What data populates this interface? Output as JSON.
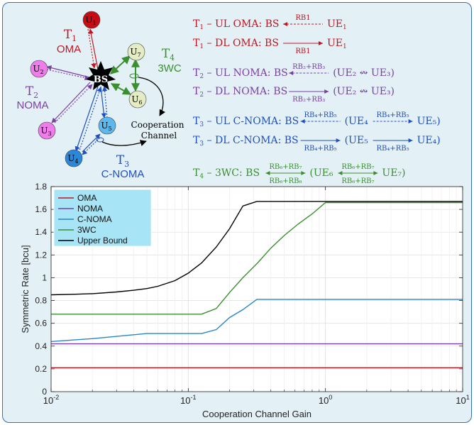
{
  "colors": {
    "oma": "#c0161f",
    "noma": "#7a3fa3",
    "cnoma": "#2377c4",
    "w3c": "#3a8f2e",
    "upper": "#000000",
    "background": "#e3f1f7",
    "border": "#3a6fb0",
    "legend_bg": "#a7e4f5"
  },
  "diagram": {
    "bs_label": "BS",
    "nodes": [
      {
        "id": "U1",
        "letter": "U",
        "sub": "1",
        "color": "#c60c12"
      },
      {
        "id": "U2",
        "letter": "U",
        "sub": "2",
        "color": "#ee7cea"
      },
      {
        "id": "U3",
        "letter": "U",
        "sub": "3",
        "color": "#ee7cea"
      },
      {
        "id": "U4",
        "letter": "U",
        "sub": "4",
        "color": "#2b87d8"
      },
      {
        "id": "U5",
        "letter": "U",
        "sub": "5",
        "color": "#5cb9ef"
      },
      {
        "id": "U6",
        "letter": "U",
        "sub": "6",
        "color": "#e5ecc4"
      },
      {
        "id": "U7",
        "letter": "U",
        "sub": "7",
        "color": "#e5ecc4"
      }
    ],
    "group_labels": [
      {
        "id": "T1",
        "letter": "T",
        "sub": "1",
        "name": "OMA",
        "color": "#c0161f"
      },
      {
        "id": "T2",
        "letter": "T",
        "sub": "2",
        "name": "NOMA",
        "color": "#7a3fa3"
      },
      {
        "id": "T3",
        "letter": "T",
        "sub": "3",
        "name": "C-NOMA",
        "color": "#1f4fc0"
      },
      {
        "id": "T4",
        "letter": "T",
        "sub": "4",
        "name": "3WC",
        "color": "#3a8f2e"
      }
    ],
    "cooperation_label_line1": "Cooperation",
    "cooperation_label_line2": "Channel"
  },
  "equations": [
    {
      "T": "1",
      "mode": "UL OMA",
      "color": "#c0161f",
      "tail": "UE",
      "tail_sub": "1",
      "rb_above": "RB",
      "rb_above_sub": "1",
      "rb_below": "",
      "dir": "left",
      "dashed": true
    },
    {
      "T": "1",
      "mode": "DL OMA",
      "color": "#c0161f",
      "tail": "UE",
      "tail_sub": "1",
      "rb_above": "",
      "rb_below": "RB",
      "rb_below_sub": "1",
      "dir": "right",
      "dashed": false
    },
    {
      "T": "2",
      "mode": "UL NOMA",
      "color": "#7a3fa3",
      "tail": "(UE₂ ↭ UE₃)",
      "rb_above": "RB₂+RB₃",
      "rb_below": "",
      "dir": "left",
      "dashed": true
    },
    {
      "T": "2",
      "mode": "DL NOMA",
      "color": "#7a3fa3",
      "tail": "(UE₂ ↭ UE₃)",
      "rb_above": "",
      "rb_below": "RB₂+RB₃",
      "dir": "right",
      "dashed": false
    },
    {
      "T": "3",
      "mode": "UL C-NOMA",
      "color": "#1f4fc0",
      "tail": "(UE₄",
      "rb_above": "RB₄+RB₅",
      "rb_below": "",
      "dir": "left",
      "dashed": true,
      "second_rb_above": "RB₄+RB₅",
      "second_rb_below": "",
      "second_tail": "UE₅)",
      "second_dashed": true
    },
    {
      "T": "3",
      "mode": "DL C-NOMA",
      "color": "#1f4fc0",
      "tail": "(UE₅",
      "rb_above": "",
      "rb_below": "RB₄+RB₅",
      "dir": "right",
      "dashed": false,
      "second_rb_above": "",
      "second_rb_below": "RB₄+RB₅",
      "second_tail": "UE₄)",
      "second_dashed": false
    },
    {
      "T": "4",
      "mode": "3WC",
      "color": "#3a8f2e",
      "tail": "(UE₆",
      "rb_above": "RB₆+RB₇",
      "rb_below": "RB₆+RB₆",
      "dir": "both",
      "dashed": false,
      "second_rb_above": "RB₆+RB₇",
      "second_rb_below": "RB₆+RB₇",
      "second_tail": "UE₇)",
      "second_dashed": false
    }
  ],
  "chart_data": {
    "type": "line",
    "xlabel": "Cooperation Channel Gain",
    "ylabel": "Symmetric Rate [bcu]",
    "xscale": "log",
    "xlim": [
      0.01,
      10
    ],
    "ylim": [
      0,
      1.8
    ],
    "x_ticks": [
      {
        "value": 0.01,
        "base": "10",
        "exp": "-2"
      },
      {
        "value": 0.1,
        "base": "10",
        "exp": "-1"
      },
      {
        "value": 1,
        "base": "10",
        "exp": "0"
      },
      {
        "value": 10,
        "base": "10",
        "exp": "1"
      }
    ],
    "y_ticks": [
      "0",
      "0.2",
      "0.4",
      "0.6",
      "0.8",
      "1",
      "1.2",
      "1.4",
      "1.6",
      "1.8"
    ],
    "grid": true,
    "legend_position": "top-left",
    "series": [
      {
        "name": "OMA",
        "color": "#c0161f",
        "x": [
          0.01,
          10
        ],
        "y": [
          0.21,
          0.21
        ]
      },
      {
        "name": "NOMA",
        "color": "#7a3fa3",
        "x": [
          0.01,
          10
        ],
        "y": [
          0.42,
          0.42
        ]
      },
      {
        "name": "C-NOMA",
        "color": "#2a86c4",
        "x": [
          0.01,
          0.015,
          0.02,
          0.03,
          0.05,
          0.08,
          0.125,
          0.16,
          0.2,
          0.25,
          0.3,
          0.316,
          0.5,
          1,
          2,
          5,
          10
        ],
        "y": [
          0.44,
          0.455,
          0.465,
          0.485,
          0.51,
          0.51,
          0.51,
          0.545,
          0.65,
          0.72,
          0.79,
          0.81,
          0.81,
          0.81,
          0.81,
          0.81,
          0.81
        ]
      },
      {
        "name": "3WC",
        "color": "#3a8f2e",
        "x": [
          0.01,
          0.02,
          0.05,
          0.1,
          0.125,
          0.16,
          0.2,
          0.25,
          0.32,
          0.4,
          0.5,
          0.63,
          0.8,
          1,
          2,
          5,
          10
        ],
        "y": [
          0.68,
          0.68,
          0.68,
          0.68,
          0.68,
          0.73,
          0.87,
          1.0,
          1.13,
          1.26,
          1.37,
          1.47,
          1.56,
          1.66,
          1.66,
          1.66,
          1.66
        ]
      },
      {
        "name": "Upper Bound",
        "color": "#000000",
        "x": [
          0.01,
          0.015,
          0.02,
          0.03,
          0.04,
          0.05,
          0.06,
          0.08,
          0.1,
          0.125,
          0.16,
          0.2,
          0.25,
          0.316,
          0.5,
          1,
          2,
          5,
          10
        ],
        "y": [
          0.85,
          0.855,
          0.86,
          0.875,
          0.89,
          0.905,
          0.925,
          0.975,
          1.04,
          1.13,
          1.27,
          1.43,
          1.63,
          1.67,
          1.67,
          1.67,
          1.67,
          1.67,
          1.67
        ]
      }
    ]
  }
}
